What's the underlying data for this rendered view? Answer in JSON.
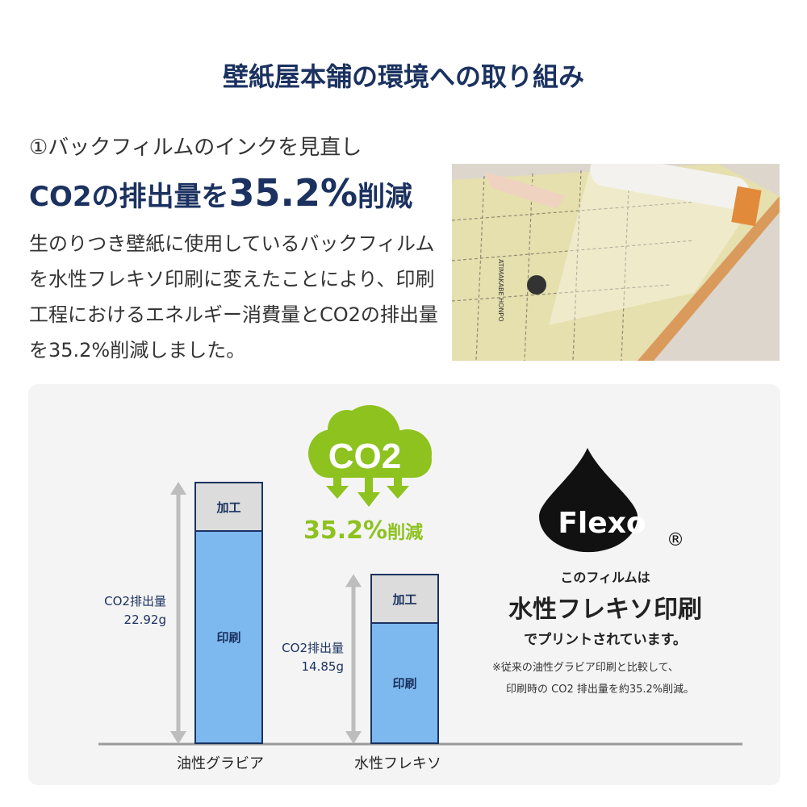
{
  "title": "壁紙屋本舗の環境への取り組み",
  "section": {
    "subtitle": "①バックフィルムのインクを見直し",
    "headline_pre": "CO2の排出量を",
    "headline_value": "35.2%",
    "headline_post": "削減",
    "body": "生のりつき壁紙に使用しているバックフィルムを水性フレキソ印刷に変えたことにより、印刷工程におけるエネルギー消費量とCO2の排出量を35.2%削減しました。"
  },
  "photo": {
    "film_text": "ATIMAKABE HONPO"
  },
  "infographic": {
    "cloud_label": "CO2",
    "reduction": "35.2%",
    "reduction_suffix": "削減",
    "flexo_logo": "Flexo",
    "registered_mark": "®",
    "line1": "このフィルムは",
    "line2": "水性フレキソ印刷",
    "line3": "でプリントされています。",
    "note1": "※従来の油性グラビア印刷と比較して、",
    "note2": "印刷時の CO2 排出量を約35.2%削減。",
    "colors": {
      "green": "#8dc21f",
      "navy": "#1b3260",
      "print_bar": "#7db9ef",
      "process_bar": "#dcdcdc"
    }
  },
  "chart_data": {
    "type": "bar",
    "stacked": true,
    "categories": [
      "油性グラビア",
      "水性フレキソ"
    ],
    "totals": [
      22.92,
      14.85
    ],
    "unit": "g",
    "segments": [
      "印刷",
      "加工"
    ],
    "total_labels": [
      {
        "label": "CO2排出量",
        "value": "22.92g"
      },
      {
        "label": "CO2排出量",
        "value": "14.85g"
      }
    ]
  }
}
